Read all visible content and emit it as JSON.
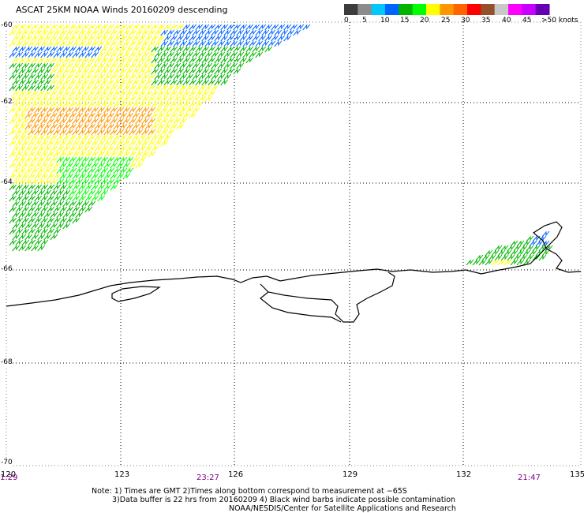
{
  "title": "ASCAT 25KM NOAA Winds 20160209 descending",
  "color_scale": {
    "colors": [
      "#3c3c3c",
      "#8c8c8c",
      "#00c8ff",
      "#0064ff",
      "#00b400",
      "#00ff00",
      "#ffff00",
      "#ff9600",
      "#ff6400",
      "#ff0000",
      "#965028",
      "#c8c8c8",
      "#ff00ff",
      "#c800ff",
      "#6400b4"
    ],
    "labels": [
      "0",
      "5",
      "10",
      "15",
      "20",
      "25",
      "30",
      "35",
      "40",
      "45",
      ">50 knots"
    ]
  },
  "latitude_labels": [
    "-60",
    "-62",
    "-64",
    "-66",
    "-68",
    "-70"
  ],
  "longitude_labels": [
    "120",
    "123",
    "126",
    "129",
    "132",
    "135"
  ],
  "time_labels": [
    "1:29",
    "23:27",
    "21:47"
  ],
  "notes": {
    "line1": "Note: 1) Times are GMT 2)Times along bottom correspond to measurement at −65S",
    "line2": "3)Data buffer is 22 hrs from 20160209 4) Black wind barbs indicate possible contamination",
    "line3": "NOAA/NESDIS/Center for Satellite Applications and Research"
  }
}
